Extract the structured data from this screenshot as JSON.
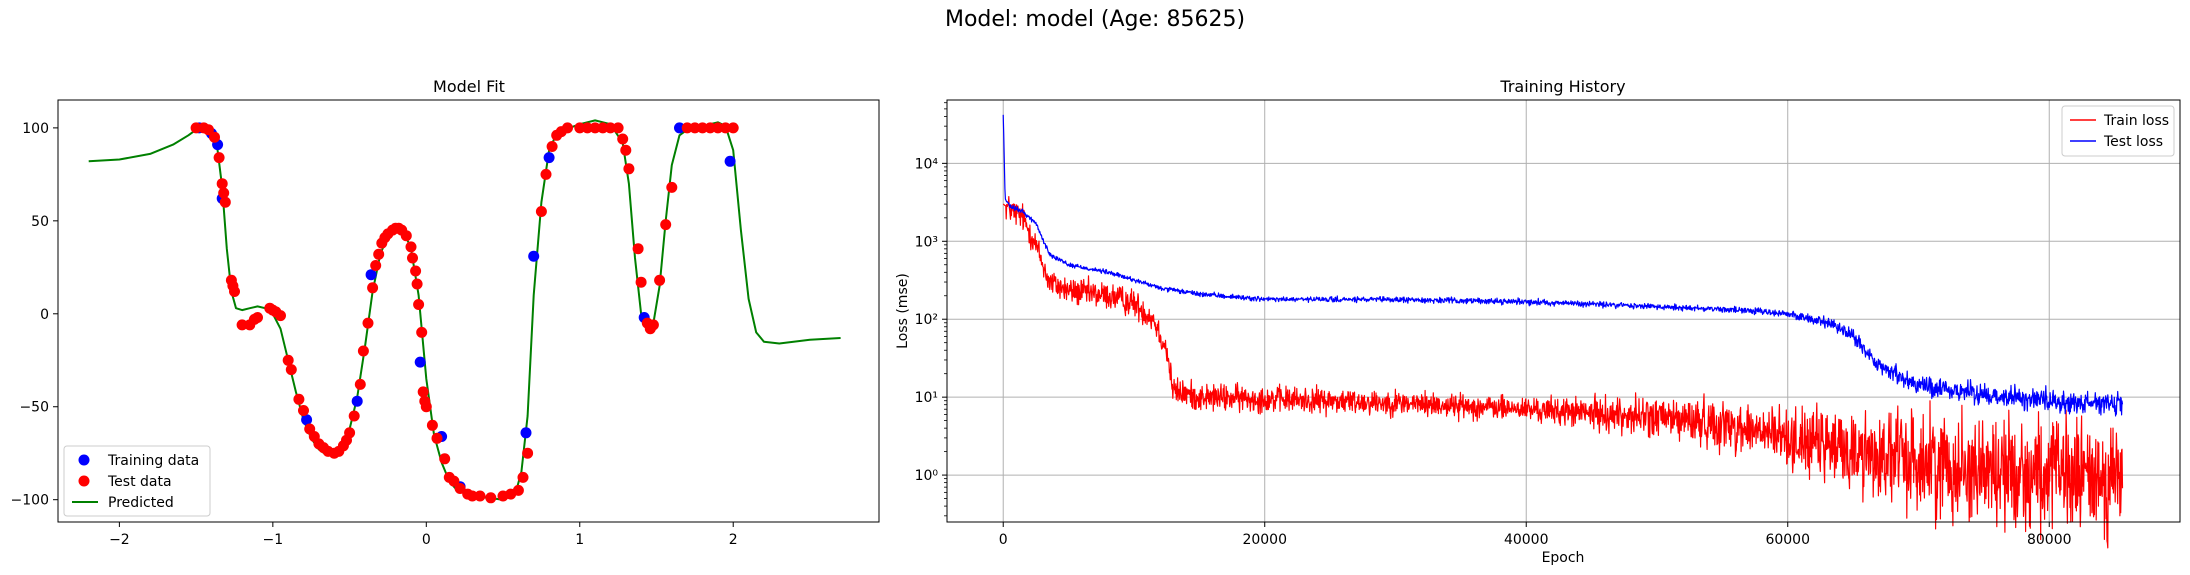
{
  "figure": {
    "suptitle": "Model: model (Age: 85625)"
  },
  "chart_data": [
    {
      "type": "scatter",
      "title": "Model Fit",
      "xlabel": "",
      "ylabel": "",
      "xlim": [
        -2.4,
        2.95
      ],
      "ylim": [
        -112,
        115
      ],
      "xticks": [
        -2,
        -1,
        0,
        1,
        2
      ],
      "xtick_labels": [
        "−2",
        "−1",
        "0",
        "1",
        "2"
      ],
      "yticks": [
        -100,
        -50,
        0,
        50,
        100
      ],
      "ytick_labels": [
        "−100",
        "−50",
        "0",
        "50",
        "100"
      ],
      "grid": false,
      "legend": "lower-left",
      "series": [
        {
          "name": "Training data",
          "kind": "scatter",
          "color": "#0000ff",
          "points": [
            [
              -1.48,
              100
            ],
            [
              -1.4,
              97
            ],
            [
              -1.36,
              91
            ],
            [
              -1.33,
              62
            ],
            [
              -0.78,
              -57
            ],
            [
              -0.45,
              -47
            ],
            [
              -0.36,
              21
            ],
            [
              -0.04,
              -26
            ],
            [
              0.1,
              -66
            ],
            [
              0.22,
              -93
            ],
            [
              0.65,
              -64
            ],
            [
              0.7,
              31
            ],
            [
              0.8,
              84
            ],
            [
              1.42,
              -2
            ],
            [
              1.65,
              100
            ],
            [
              1.98,
              82
            ]
          ]
        },
        {
          "name": "Test data",
          "kind": "scatter",
          "color": "#ff0000",
          "points": [
            [
              -1.5,
              100
            ],
            [
              -1.45,
              100
            ],
            [
              -1.42,
              99
            ],
            [
              -1.38,
              95
            ],
            [
              -1.35,
              84
            ],
            [
              -1.33,
              70
            ],
            [
              -1.32,
              65
            ],
            [
              -1.31,
              60
            ],
            [
              -1.27,
              18
            ],
            [
              -1.26,
              15
            ],
            [
              -1.25,
              12
            ],
            [
              -1.2,
              -6
            ],
            [
              -1.15,
              -6
            ],
            [
              -1.12,
              -3
            ],
            [
              -1.1,
              -2
            ],
            [
              -1.02,
              3
            ],
            [
              -1.0,
              2
            ],
            [
              -0.98,
              1
            ],
            [
              -0.95,
              -1
            ],
            [
              -0.9,
              -25
            ],
            [
              -0.88,
              -30
            ],
            [
              -0.83,
              -46
            ],
            [
              -0.8,
              -52
            ],
            [
              -0.76,
              -62
            ],
            [
              -0.73,
              -66
            ],
            [
              -0.7,
              -70
            ],
            [
              -0.67,
              -72
            ],
            [
              -0.64,
              -74
            ],
            [
              -0.6,
              -75
            ],
            [
              -0.57,
              -74
            ],
            [
              -0.54,
              -71
            ],
            [
              -0.52,
              -68
            ],
            [
              -0.5,
              -64
            ],
            [
              -0.47,
              -55
            ],
            [
              -0.43,
              -38
            ],
            [
              -0.41,
              -20
            ],
            [
              -0.38,
              -5
            ],
            [
              -0.35,
              14
            ],
            [
              -0.33,
              26
            ],
            [
              -0.31,
              32
            ],
            [
              -0.29,
              38
            ],
            [
              -0.27,
              41
            ],
            [
              -0.25,
              43
            ],
            [
              -0.22,
              45
            ],
            [
              -0.2,
              46
            ],
            [
              -0.18,
              46
            ],
            [
              -0.16,
              45
            ],
            [
              -0.13,
              42
            ],
            [
              -0.1,
              36
            ],
            [
              -0.09,
              30
            ],
            [
              -0.07,
              23
            ],
            [
              -0.06,
              16
            ],
            [
              -0.05,
              5
            ],
            [
              -0.03,
              -10
            ],
            [
              -0.02,
              -42
            ],
            [
              -0.01,
              -47
            ],
            [
              0.0,
              -50
            ],
            [
              0.04,
              -60
            ],
            [
              0.07,
              -67
            ],
            [
              0.12,
              -78
            ],
            [
              0.15,
              -88
            ],
            [
              0.18,
              -90
            ],
            [
              0.22,
              -94
            ],
            [
              0.27,
              -97
            ],
            [
              0.3,
              -98
            ],
            [
              0.35,
              -98
            ],
            [
              0.42,
              -99
            ],
            [
              0.5,
              -98
            ],
            [
              0.55,
              -97
            ],
            [
              0.6,
              -95
            ],
            [
              0.63,
              -88
            ],
            [
              0.66,
              -75
            ],
            [
              0.75,
              55
            ],
            [
              0.78,
              75
            ],
            [
              0.82,
              90
            ],
            [
              0.85,
              96
            ],
            [
              0.88,
              98
            ],
            [
              0.92,
              100
            ],
            [
              1.0,
              100
            ],
            [
              1.05,
              100
            ],
            [
              1.1,
              100
            ],
            [
              1.15,
              100
            ],
            [
              1.2,
              100
            ],
            [
              1.25,
              100
            ],
            [
              1.28,
              94
            ],
            [
              1.3,
              88
            ],
            [
              1.32,
              78
            ],
            [
              1.38,
              35
            ],
            [
              1.4,
              17
            ],
            [
              1.44,
              -5
            ],
            [
              1.46,
              -8
            ],
            [
              1.48,
              -6
            ],
            [
              1.52,
              18
            ],
            [
              1.56,
              48
            ],
            [
              1.6,
              68
            ],
            [
              1.7,
              100
            ],
            [
              1.75,
              100
            ],
            [
              1.8,
              100
            ],
            [
              1.85,
              100
            ],
            [
              1.9,
              100
            ],
            [
              1.95,
              100
            ],
            [
              2.0,
              100
            ]
          ]
        },
        {
          "name": "Predicted",
          "kind": "line",
          "color": "#008000",
          "points": [
            [
              -2.2,
              82
            ],
            [
              -2.0,
              83
            ],
            [
              -1.8,
              86
            ],
            [
              -1.65,
              91
            ],
            [
              -1.55,
              96
            ],
            [
              -1.5,
              99
            ],
            [
              -1.45,
              101
            ],
            [
              -1.4,
              98
            ],
            [
              -1.36,
              88
            ],
            [
              -1.33,
              68
            ],
            [
              -1.3,
              35
            ],
            [
              -1.27,
              12
            ],
            [
              -1.24,
              3
            ],
            [
              -1.2,
              2
            ],
            [
              -1.15,
              3
            ],
            [
              -1.1,
              4
            ],
            [
              -1.05,
              3
            ],
            [
              -1.0,
              0
            ],
            [
              -0.95,
              -8
            ],
            [
              -0.9,
              -25
            ],
            [
              -0.85,
              -42
            ],
            [
              -0.8,
              -57
            ],
            [
              -0.75,
              -67
            ],
            [
              -0.7,
              -73
            ],
            [
              -0.65,
              -76
            ],
            [
              -0.6,
              -76
            ],
            [
              -0.55,
              -72
            ],
            [
              -0.5,
              -62
            ],
            [
              -0.45,
              -45
            ],
            [
              -0.4,
              -18
            ],
            [
              -0.35,
              12
            ],
            [
              -0.3,
              32
            ],
            [
              -0.25,
              42
            ],
            [
              -0.2,
              46
            ],
            [
              -0.15,
              45
            ],
            [
              -0.1,
              35
            ],
            [
              -0.05,
              10
            ],
            [
              0.0,
              -35
            ],
            [
              0.05,
              -65
            ],
            [
              0.1,
              -80
            ],
            [
              0.15,
              -90
            ],
            [
              0.2,
              -95
            ],
            [
              0.3,
              -98
            ],
            [
              0.4,
              -99
            ],
            [
              0.5,
              -100
            ],
            [
              0.58,
              -97
            ],
            [
              0.62,
              -85
            ],
            [
              0.66,
              -55
            ],
            [
              0.7,
              10
            ],
            [
              0.75,
              60
            ],
            [
              0.8,
              88
            ],
            [
              0.85,
              97
            ],
            [
              0.9,
              99
            ],
            [
              1.0,
              102
            ],
            [
              1.1,
              104
            ],
            [
              1.2,
              102
            ],
            [
              1.28,
              92
            ],
            [
              1.32,
              70
            ],
            [
              1.36,
              30
            ],
            [
              1.4,
              0
            ],
            [
              1.44,
              -8
            ],
            [
              1.48,
              -5
            ],
            [
              1.52,
              15
            ],
            [
              1.56,
              50
            ],
            [
              1.6,
              80
            ],
            [
              1.65,
              96
            ],
            [
              1.7,
              99
            ],
            [
              1.8,
              101
            ],
            [
              1.9,
              103
            ],
            [
              1.95,
              101
            ],
            [
              2.0,
              88
            ],
            [
              2.05,
              45
            ],
            [
              2.1,
              8
            ],
            [
              2.15,
              -10
            ],
            [
              2.2,
              -15
            ],
            [
              2.3,
              -16
            ],
            [
              2.5,
              -14
            ],
            [
              2.7,
              -13
            ]
          ]
        }
      ]
    },
    {
      "type": "line",
      "title": "Training History",
      "xlabel": "Epoch",
      "ylabel": "Loss (mse)",
      "xlim": [
        -4300,
        90000
      ],
      "yscale": "log",
      "ylim": [
        0.25,
        65000
      ],
      "xticks": [
        0,
        20000,
        40000,
        60000,
        80000
      ],
      "xtick_labels": [
        "0",
        "20000",
        "40000",
        "60000",
        "80000"
      ],
      "yticks": [
        1,
        10,
        100,
        1000,
        10000
      ],
      "ytick_labels": [
        "10⁰",
        "10¹",
        "10²",
        "10³",
        "10⁴"
      ],
      "grid": true,
      "legend": "top-right",
      "series": [
        {
          "name": "Train loss",
          "color": "#ff0000",
          "points": [
            [
              0,
              3000
            ],
            [
              500,
              2600
            ],
            [
              1500,
              2000
            ],
            [
              2500,
              900
            ],
            [
              3500,
              300
            ],
            [
              5000,
              230
            ],
            [
              8000,
              200
            ],
            [
              10000,
              160
            ],
            [
              11500,
              100
            ],
            [
              12500,
              40
            ],
            [
              13000,
              12
            ],
            [
              15000,
              10
            ],
            [
              20000,
              9.5
            ],
            [
              30000,
              8.5
            ],
            [
              40000,
              7
            ],
            [
              50000,
              5.5
            ],
            [
              55000,
              4.5
            ],
            [
              60000,
              3
            ],
            [
              65000,
              2
            ],
            [
              70000,
              1.5
            ],
            [
              75000,
              1.2
            ],
            [
              80000,
              1.0
            ],
            [
              85600,
              0.9
            ]
          ],
          "noise": [
            [
              13000,
              0.12
            ],
            [
              40000,
              0.1
            ],
            [
              60000,
              0.25
            ],
            [
              70000,
              0.45
            ],
            [
              85600,
              0.5
            ]
          ]
        },
        {
          "name": "Test loss",
          "color": "#0000ff",
          "points": [
            [
              0,
              42000
            ],
            [
              150,
              3500
            ],
            [
              500,
              2800
            ],
            [
              1500,
              2400
            ],
            [
              2500,
              1700
            ],
            [
              3500,
              700
            ],
            [
              5000,
              500
            ],
            [
              8000,
              400
            ],
            [
              10000,
              320
            ],
            [
              12000,
              250
            ],
            [
              15000,
              210
            ],
            [
              20000,
              180
            ],
            [
              30000,
              178
            ],
            [
              40000,
              168
            ],
            [
              50000,
              145
            ],
            [
              55000,
              135
            ],
            [
              60000,
              118
            ],
            [
              63000,
              90
            ],
            [
              65000,
              60
            ],
            [
              67000,
              25
            ],
            [
              70000,
              14
            ],
            [
              75000,
              11
            ],
            [
              80000,
              9
            ],
            [
              85600,
              8
            ]
          ],
          "noise": [
            [
              13000,
              0.02
            ],
            [
              60000,
              0.03
            ],
            [
              68000,
              0.08
            ],
            [
              85600,
              0.1
            ]
          ]
        }
      ]
    }
  ]
}
